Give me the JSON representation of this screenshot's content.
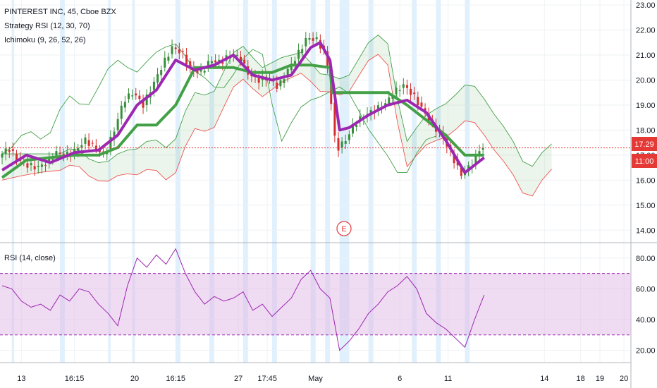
{
  "header": {
    "symbol_line": "PINTEREST INC, 45, Cboe BZX",
    "indicator_1": "Strategy RSI (12, 30, 70)",
    "indicator_2": "Ichimoku (9, 26, 52, 26)"
  },
  "rsi_header": "RSI (14, close)",
  "event_marker": "E",
  "last_price": "17.29",
  "countdown": "11:00",
  "colors": {
    "price_line": "#e53935",
    "candle_up": "#388e3c",
    "candle_down": "#d32f2f",
    "strategy_rsi": "#9c27b0",
    "kijun": "#43a047",
    "cloud_green": "#43a047",
    "cloud_red": "#ef5350",
    "rsi_line": "#9c27b0",
    "rsi_band": "#e1bee7",
    "highlight_band": "#bbdefb"
  },
  "chart_data": [
    {
      "type": "candlestick",
      "title": "PINTEREST INC, 45, Cboe BZX",
      "y_ticks": [
        23.0,
        22.0,
        21.0,
        20.0,
        19.0,
        18.0,
        17.0,
        16.0,
        15.0,
        14.0
      ],
      "ylim": [
        13.5,
        23.2
      ],
      "x_ticks": [
        "13",
        "16:15",
        "20",
        "16:15",
        "27",
        "17:45",
        "May",
        "6",
        "11",
        "14",
        "18",
        "19",
        "20"
      ],
      "last_price": 17.29,
      "series": [
        {
          "name": "Price",
          "x": [
            0,
            4,
            8,
            12,
            16,
            20,
            24,
            28,
            32,
            36,
            40,
            44,
            48,
            52,
            56,
            60,
            64,
            68,
            72,
            76,
            80,
            84,
            88,
            92,
            96,
            100,
            104,
            108,
            112,
            116,
            120,
            124,
            128,
            132,
            136,
            140,
            144,
            148,
            152,
            156,
            160,
            164,
            168,
            172,
            176,
            180,
            184,
            188,
            192,
            196,
            200
          ],
          "values": [
            16.9,
            17.3,
            16.8,
            16.6,
            16.5,
            16.7,
            17.1,
            17.0,
            17.2,
            17.6,
            17.3,
            17.0,
            18.0,
            19.2,
            19.5,
            19.0,
            19.8,
            20.6,
            21.3,
            21.1,
            20.4,
            20.3,
            20.8,
            20.7,
            21.0,
            20.9,
            20.2,
            20.0,
            20.1,
            19.7,
            20.4,
            21.0,
            21.7,
            21.6,
            21.0,
            17.2,
            17.6,
            18.3,
            18.6,
            18.8,
            19.0,
            19.5,
            19.8,
            19.4,
            18.8,
            18.2,
            17.8,
            17.0,
            16.2,
            16.6,
            17.3
          ]
        },
        {
          "name": "Strategy RSI",
          "x": [
            0,
            10,
            20,
            30,
            40,
            48,
            56,
            64,
            72,
            80,
            88,
            96,
            104,
            112,
            120,
            128,
            132,
            136,
            140,
            144,
            152,
            160,
            168,
            176,
            184,
            192,
            200
          ],
          "values": [
            16.4,
            17.0,
            16.7,
            17.1,
            17.2,
            17.8,
            19.0,
            19.6,
            20.8,
            20.4,
            20.6,
            21.0,
            20.2,
            20.0,
            20.2,
            21.3,
            21.5,
            20.8,
            18.0,
            18.1,
            18.6,
            19.0,
            19.2,
            18.7,
            17.6,
            16.3,
            16.9
          ]
        },
        {
          "name": "Kijun",
          "x": [
            0,
            10,
            20,
            30,
            40,
            48,
            56,
            64,
            72,
            80,
            96,
            104,
            112,
            120,
            128,
            136,
            137,
            160,
            168,
            176,
            184,
            192,
            200
          ],
          "values": [
            16.1,
            16.8,
            16.9,
            17.0,
            17.0,
            17.3,
            18.2,
            18.2,
            19.0,
            20.5,
            20.5,
            20.3,
            20.3,
            20.6,
            20.6,
            20.5,
            19.5,
            19.5,
            19.0,
            18.4,
            17.8,
            17.0,
            17.0
          ]
        }
      ]
    },
    {
      "type": "line",
      "title": "RSI (14, close)",
      "y_ticks": [
        80.0,
        60.0,
        40.0,
        20.0
      ],
      "ylim": [
        12,
        90
      ],
      "band": [
        30,
        70
      ],
      "series": [
        {
          "name": "RSI",
          "x": [
            0,
            4,
            8,
            12,
            16,
            20,
            24,
            28,
            32,
            36,
            40,
            44,
            48,
            52,
            56,
            60,
            64,
            68,
            72,
            76,
            80,
            84,
            88,
            92,
            96,
            100,
            104,
            108,
            112,
            116,
            120,
            124,
            128,
            132,
            136,
            140,
            144,
            148,
            152,
            156,
            160,
            164,
            168,
            172,
            176,
            180,
            184,
            188,
            192,
            196,
            200
          ],
          "values": [
            62,
            60,
            52,
            48,
            50,
            46,
            56,
            52,
            60,
            58,
            50,
            44,
            36,
            62,
            80,
            74,
            82,
            76,
            86,
            70,
            58,
            50,
            55,
            52,
            54,
            58,
            46,
            50,
            42,
            48,
            54,
            66,
            72,
            60,
            54,
            20,
            26,
            34,
            44,
            50,
            58,
            62,
            68,
            60,
            44,
            38,
            34,
            28,
            22,
            40,
            56
          ]
        }
      ]
    }
  ]
}
